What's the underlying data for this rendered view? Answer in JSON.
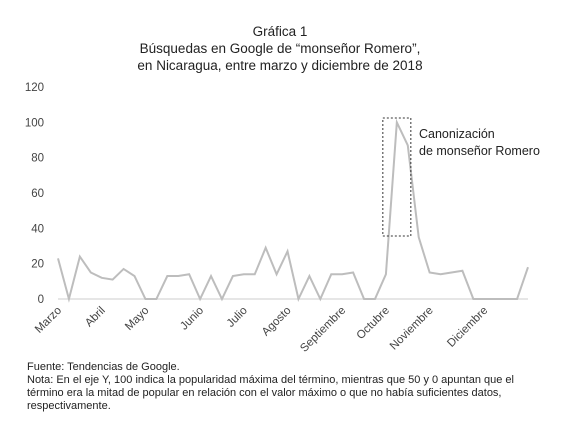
{
  "chart_data": {
    "type": "line",
    "title": [
      "Gráfica 1",
      "Búsquedas en Google de “monseñor Romero”,",
      "en Nicaragua, entre marzo y diciembre de 2018"
    ],
    "categories": [
      "Marzo",
      null,
      null,
      null,
      "Abril",
      null,
      null,
      null,
      "Mayo",
      null,
      null,
      null,
      null,
      "Junio",
      null,
      null,
      null,
      "Julio",
      null,
      null,
      null,
      "Agosto",
      null,
      null,
      null,
      null,
      "Septiembre",
      null,
      null,
      null,
      "Octubre",
      null,
      null,
      null,
      "Noviembre",
      null,
      null,
      null,
      null,
      "Diciembre",
      null,
      null,
      null,
      null
    ],
    "series": [
      {
        "color": "#bdbdbd",
        "values": [
          23,
          0,
          24,
          15,
          12,
          11,
          17,
          13,
          0,
          0,
          13,
          13,
          14,
          0,
          13,
          0,
          13,
          14,
          14,
          29,
          14,
          27,
          0,
          13,
          0,
          14,
          14,
          15,
          0,
          0,
          14,
          100,
          87,
          35,
          15,
          14,
          15,
          16,
          0,
          0,
          0,
          0,
          0,
          18
        ]
      }
    ],
    "ylim": [
      0,
      120
    ],
    "yticks": [
      0,
      20,
      40,
      60,
      80,
      100,
      120
    ],
    "annotation": [
      "Canonización",
      "de monseñor Romero"
    ],
    "notes": [
      "Fuente: Tendencias de Google.",
      "Nota: En el eje Y, 100 indica la popularidad máxima del término, mientras que 50 y 0 apuntan que el",
      "término era la mitad de popular en relación con el valor máximo o que no había suficientes datos,",
      "respectivamente."
    ]
  }
}
